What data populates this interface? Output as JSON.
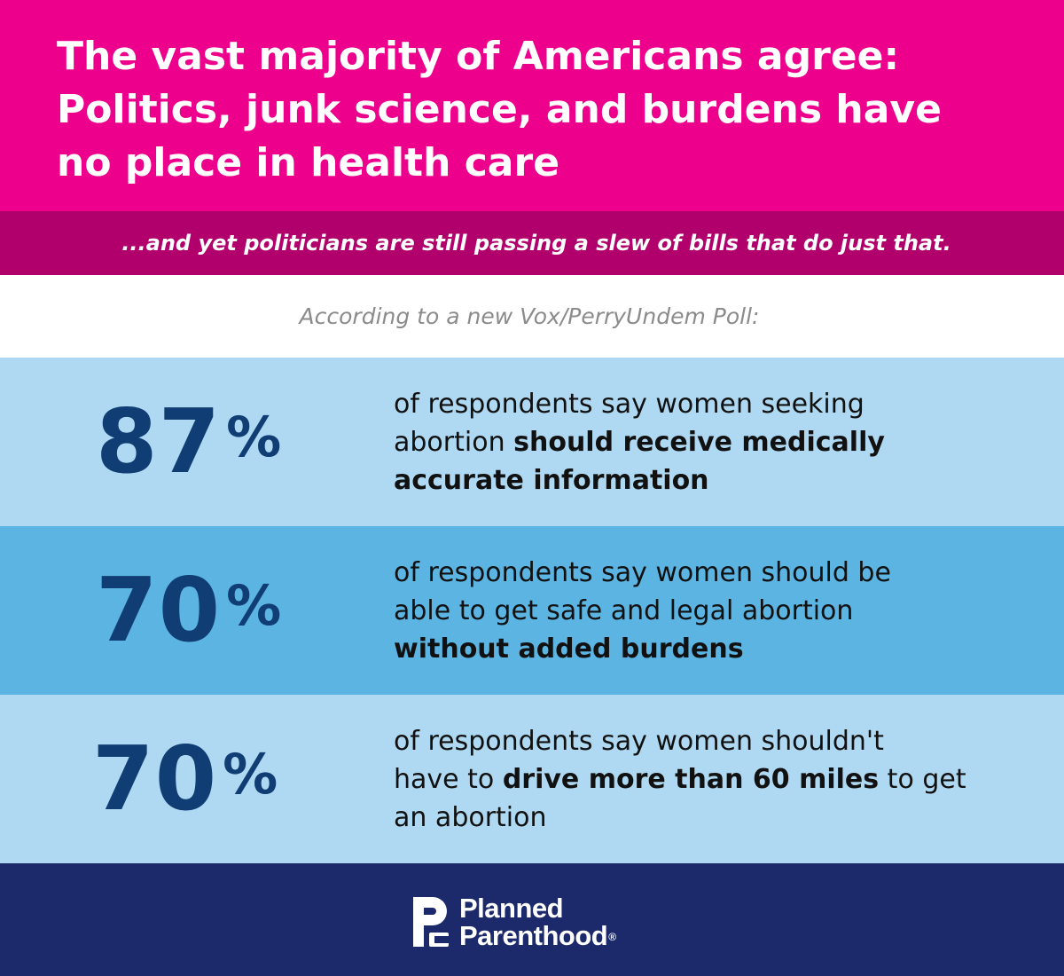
{
  "header": {
    "headline_lines": [
      "The vast majority of Americans agree:",
      "Politics, junk science, and burdens have",
      "no place in health care"
    ],
    "subline": "...and yet politicians are still passing a slew of bills that do just that."
  },
  "source_note": "According to a new Vox/PerryUndem Poll:",
  "stats": [
    {
      "value": "87",
      "unit": "%",
      "lines": [
        [
          "of respondents say women seeking"
        ],
        [
          "abortion ",
          "should receive medically"
        ],
        [
          "",
          "accurate information"
        ]
      ]
    },
    {
      "value": "70",
      "unit": "%",
      "lines": [
        [
          "of respondents say women should be"
        ],
        [
          "able to get safe and legal abortion"
        ],
        [
          "",
          "without added burdens"
        ]
      ]
    },
    {
      "value": "70",
      "unit": "%",
      "lines": [
        [
          "of respondents say women shouldn't"
        ],
        [
          "have to ",
          "drive more than 60 miles",
          " to get"
        ],
        [
          "an abortion"
        ]
      ]
    }
  ],
  "footer": {
    "logo_line1": "Planned",
    "logo_line2": "Parenthood",
    "logo_mark": "®"
  },
  "colors": {
    "pink": "#ec008c",
    "magenta_bar": "#b1006c",
    "light_blue": "#afd9f2",
    "mid_blue": "#5cb4e3",
    "number_navy": "#103d73",
    "footer_navy": "#1c296b"
  }
}
